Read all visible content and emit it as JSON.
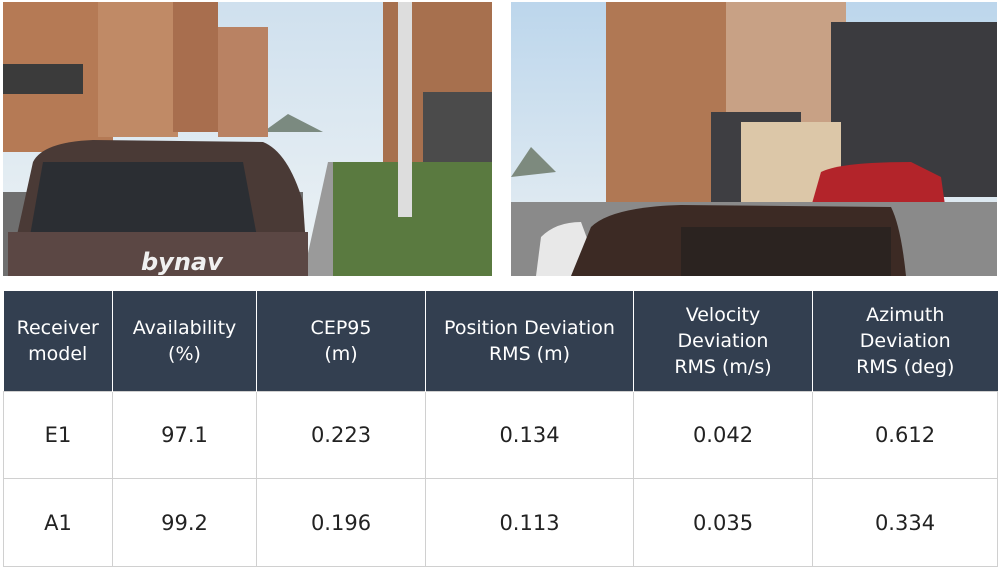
{
  "photos": {
    "left": {
      "logo": "bynav"
    }
  },
  "table": {
    "header": [
      [
        "Receiver",
        "model"
      ],
      [
        "Availability",
        "(%)"
      ],
      [
        "CEP95",
        "(m)"
      ],
      [
        "Position Deviation",
        "RMS (m)"
      ],
      [
        "Velocity",
        "Deviation",
        "RMS (m/s)"
      ],
      [
        "Azimuth",
        "Deviation",
        "RMS (deg)"
      ]
    ],
    "rows": [
      [
        "E1",
        "97.1",
        "0.223",
        "0.134",
        "0.042",
        "0.612"
      ],
      [
        "A1",
        "99.2",
        "0.196",
        "0.113",
        "0.035",
        "0.334"
      ]
    ]
  }
}
